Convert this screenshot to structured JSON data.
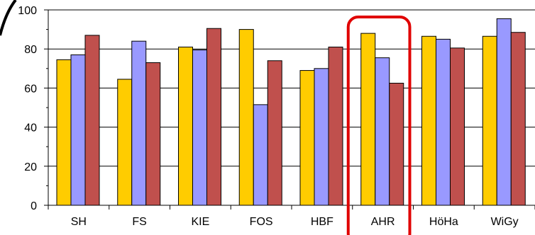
{
  "chart_data": {
    "type": "bar",
    "title": "",
    "xlabel": "",
    "ylabel": "",
    "categories": [
      "SH",
      "FS",
      "KIE",
      "FOS",
      "HBF",
      "AHR",
      "HöHa",
      "WiGy"
    ],
    "series": [
      {
        "values": [
          74.5,
          64.5,
          81,
          90,
          69,
          88,
          86.5,
          86.5
        ]
      },
      {
        "values": [
          77,
          84,
          79.5,
          51.5,
          70,
          75.5,
          85,
          95.5
        ]
      },
      {
        "values": [
          87,
          73,
          90.5,
          74,
          81,
          62.5,
          80.5,
          88.5
        ]
      }
    ],
    "ylim": [
      0,
      100
    ],
    "yticks": [
      0,
      20,
      40,
      60,
      80,
      100
    ],
    "grid": true,
    "legend": "none",
    "highlight_category": "AHR",
    "colors": {
      "series": [
        "#FFCC00",
        "#9999FF",
        "#C0504D"
      ],
      "highlight": "#E00000",
      "grid": "#000000"
    }
  }
}
